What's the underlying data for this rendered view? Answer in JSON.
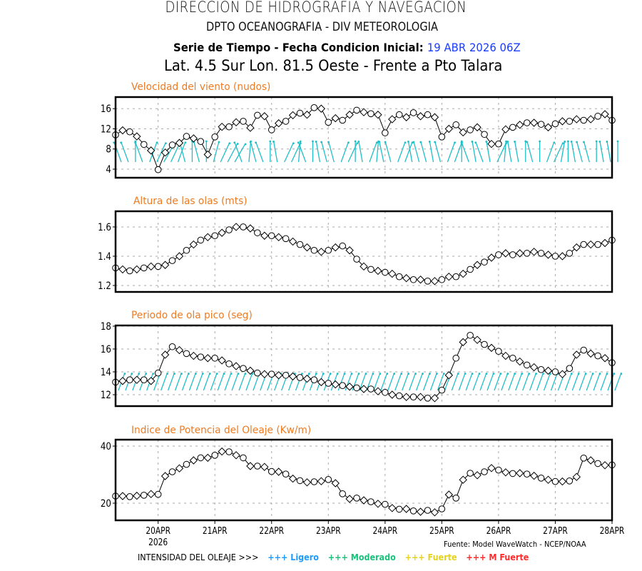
{
  "header": {
    "title": "DIRECCION DE HIDROGRAFIA Y NAVEGACION",
    "subtitle": "DPTO OCEANOGRAFIA - DIV METEOROLOGIA",
    "series_label": "Serie de Tiempo - Fecha Condicion Inicial:",
    "init_date": "19 ABR 2026 06Z",
    "location": "Lat. 4.5 Sur  Lon. 81.5 Oeste - Frente a Pto Talara"
  },
  "colors": {
    "panel_title": "#ee7b22",
    "arrows": "#1fbfc8",
    "init_date": "#1a3cff",
    "ligero": "#1e9bff",
    "moderado": "#19c27a",
    "fuerte": "#e6d21a",
    "m_fuerte": "#ff2a2a"
  },
  "x_axis": {
    "ticks": [
      "20APR",
      "21APR",
      "22APR",
      "23APR",
      "24APR",
      "25APR",
      "26APR",
      "27APR",
      "28APR"
    ],
    "year": "2026",
    "start": "19APR 06Z",
    "step_hours": 3
  },
  "footer": {
    "source": "Fuente: Model WaveWatch - NCEP/NOAA",
    "legend_label": "INTENSIDAD DEL OLEAJE >>>",
    "legend": [
      {
        "marker": "+++",
        "label": "Ligero",
        "color_key": "ligero"
      },
      {
        "marker": "+++",
        "label": "Moderado",
        "color_key": "moderado"
      },
      {
        "marker": "+++",
        "label": "Fuerte",
        "color_key": "fuerte"
      },
      {
        "marker": "+++",
        "label": "M Fuerte",
        "color_key": "m_fuerte"
      }
    ]
  },
  "chart_data": [
    {
      "type": "line",
      "title": "Velocidad del viento (nudos)",
      "xlabel": "",
      "ylabel": "",
      "yticks": [
        4,
        8,
        12,
        16
      ],
      "ylim": [
        2.3,
        18.3
      ],
      "grid": true,
      "arrows": "wind direction vectors (cyan)",
      "values": [
        10.8,
        11.7,
        11.4,
        10.5,
        8.9,
        7.7,
        3.9,
        7.3,
        8.8,
        9.2,
        10.5,
        10.1,
        9.5,
        6.9,
        10.4,
        12.4,
        12.4,
        13.3,
        13.5,
        12.2,
        14.7,
        14.5,
        11.8,
        13.1,
        13.5,
        14.7,
        15.1,
        14.8,
        16.2,
        16.0,
        13.3,
        14.1,
        13.7,
        14.8,
        15.7,
        15.3,
        15.0,
        14.8,
        11.2,
        13.9,
        14.8,
        14.3,
        15.2,
        14.5,
        14.8,
        14.3,
        10.4,
        12.0,
        12.8,
        11.3,
        11.8,
        12.3,
        10.9,
        9.0,
        9.0,
        11.9,
        12.3,
        12.8,
        13.2,
        13.2,
        12.9,
        12.3,
        13.0,
        13.5,
        13.5,
        13.9,
        13.7,
        13.9,
        14.5,
        14.9,
        13.7
      ],
      "arrow_angles_deg": [
        -20,
        -20,
        0,
        -20,
        20,
        25,
        30,
        25,
        20,
        -15,
        0,
        -15,
        0,
        15,
        25,
        28,
        30,
        -20,
        5,
        -15,
        -20,
        0,
        -10,
        25,
        25,
        5,
        -20,
        0,
        -10,
        -15,
        -15,
        20,
        25,
        0,
        -10,
        20,
        5,
        -12,
        -15,
        20,
        20,
        -10,
        -15,
        -15,
        -10,
        -15,
        20,
        20,
        0,
        -20,
        -10,
        -20,
        -10,
        25,
        5,
        -10,
        -10,
        0,
        -15,
        0,
        20,
        25,
        10,
        0,
        -10,
        -15,
        -15,
        0,
        -10,
        -10,
        0
      ]
    },
    {
      "type": "line",
      "title": "Altura de las olas (mts)",
      "xlabel": "",
      "ylabel": "",
      "yticks": [
        1.2,
        1.4,
        1.6
      ],
      "ylim": [
        1.156,
        1.707
      ],
      "grid": true,
      "values": [
        1.32,
        1.31,
        1.3,
        1.31,
        1.32,
        1.33,
        1.33,
        1.34,
        1.37,
        1.4,
        1.44,
        1.48,
        1.51,
        1.53,
        1.54,
        1.56,
        1.58,
        1.6,
        1.6,
        1.59,
        1.56,
        1.54,
        1.54,
        1.53,
        1.52,
        1.5,
        1.48,
        1.46,
        1.44,
        1.43,
        1.44,
        1.46,
        1.47,
        1.44,
        1.38,
        1.33,
        1.31,
        1.3,
        1.29,
        1.28,
        1.26,
        1.25,
        1.24,
        1.24,
        1.23,
        1.23,
        1.24,
        1.26,
        1.26,
        1.28,
        1.31,
        1.34,
        1.36,
        1.39,
        1.41,
        1.42,
        1.41,
        1.42,
        1.42,
        1.43,
        1.42,
        1.41,
        1.4,
        1.4,
        1.42,
        1.46,
        1.48,
        1.48,
        1.48,
        1.49,
        1.51
      ]
    },
    {
      "type": "line",
      "title": "Periodo de ola pico (seg)",
      "xlabel": "",
      "ylabel": "",
      "yticks": [
        12,
        14,
        16,
        18
      ],
      "ylim": [
        11,
        18.06
      ],
      "grid": true,
      "arrows": "wave direction vectors (cyan)",
      "values": [
        13.1,
        13.2,
        13.3,
        13.3,
        13.3,
        13.2,
        13.9,
        15.5,
        16.2,
        15.9,
        15.6,
        15.4,
        15.3,
        15.2,
        15.2,
        15.0,
        14.7,
        14.5,
        14.3,
        14.1,
        13.9,
        13.8,
        13.8,
        13.7,
        13.7,
        13.6,
        13.5,
        13.4,
        13.3,
        13.1,
        13.0,
        12.9,
        12.8,
        12.7,
        12.6,
        12.5,
        12.5,
        12.3,
        12.2,
        12.0,
        11.9,
        11.8,
        11.8,
        11.8,
        11.7,
        11.7,
        12.4,
        13.7,
        15.2,
        16.6,
        17.2,
        16.8,
        16.4,
        16.1,
        15.8,
        15.4,
        15.2,
        14.9,
        14.6,
        14.4,
        14.2,
        14.1,
        14.0,
        13.8,
        14.3,
        15.5,
        15.9,
        15.6,
        15.4,
        15.2,
        14.8
      ],
      "arrow_angle_deg": 20
    },
    {
      "type": "line",
      "title": "Indice de Potencia del Oleaje (Kw/m)",
      "xlabel": "",
      "ylabel": "",
      "yticks": [
        20,
        40
      ],
      "ylim": [
        14,
        42.25
      ],
      "grid": true,
      "values": [
        22.5,
        22.5,
        22.3,
        22.6,
        22.8,
        23.2,
        23.1,
        29.5,
        31.0,
        32.2,
        33.6,
        35.0,
        35.9,
        35.9,
        36.8,
        38.1,
        38.0,
        36.8,
        35.9,
        33.0,
        33.0,
        32.7,
        31.1,
        31.0,
        30.2,
        28.6,
        27.9,
        27.3,
        27.5,
        27.7,
        28.3,
        27.0,
        23.3,
        21.5,
        21.8,
        21.0,
        20.5,
        19.8,
        19.6,
        18.3,
        17.9,
        18.0,
        17.3,
        17.0,
        17.5,
        16.8,
        18.0,
        23.0,
        21.8,
        28.2,
        30.5,
        29.8,
        31.0,
        32.3,
        31.6,
        30.8,
        30.4,
        30.5,
        30.2,
        29.6,
        28.8,
        28.2,
        27.6,
        27.6,
        27.8,
        29.2,
        35.8,
        35.0,
        33.9,
        33.3,
        33.4
      ]
    }
  ]
}
